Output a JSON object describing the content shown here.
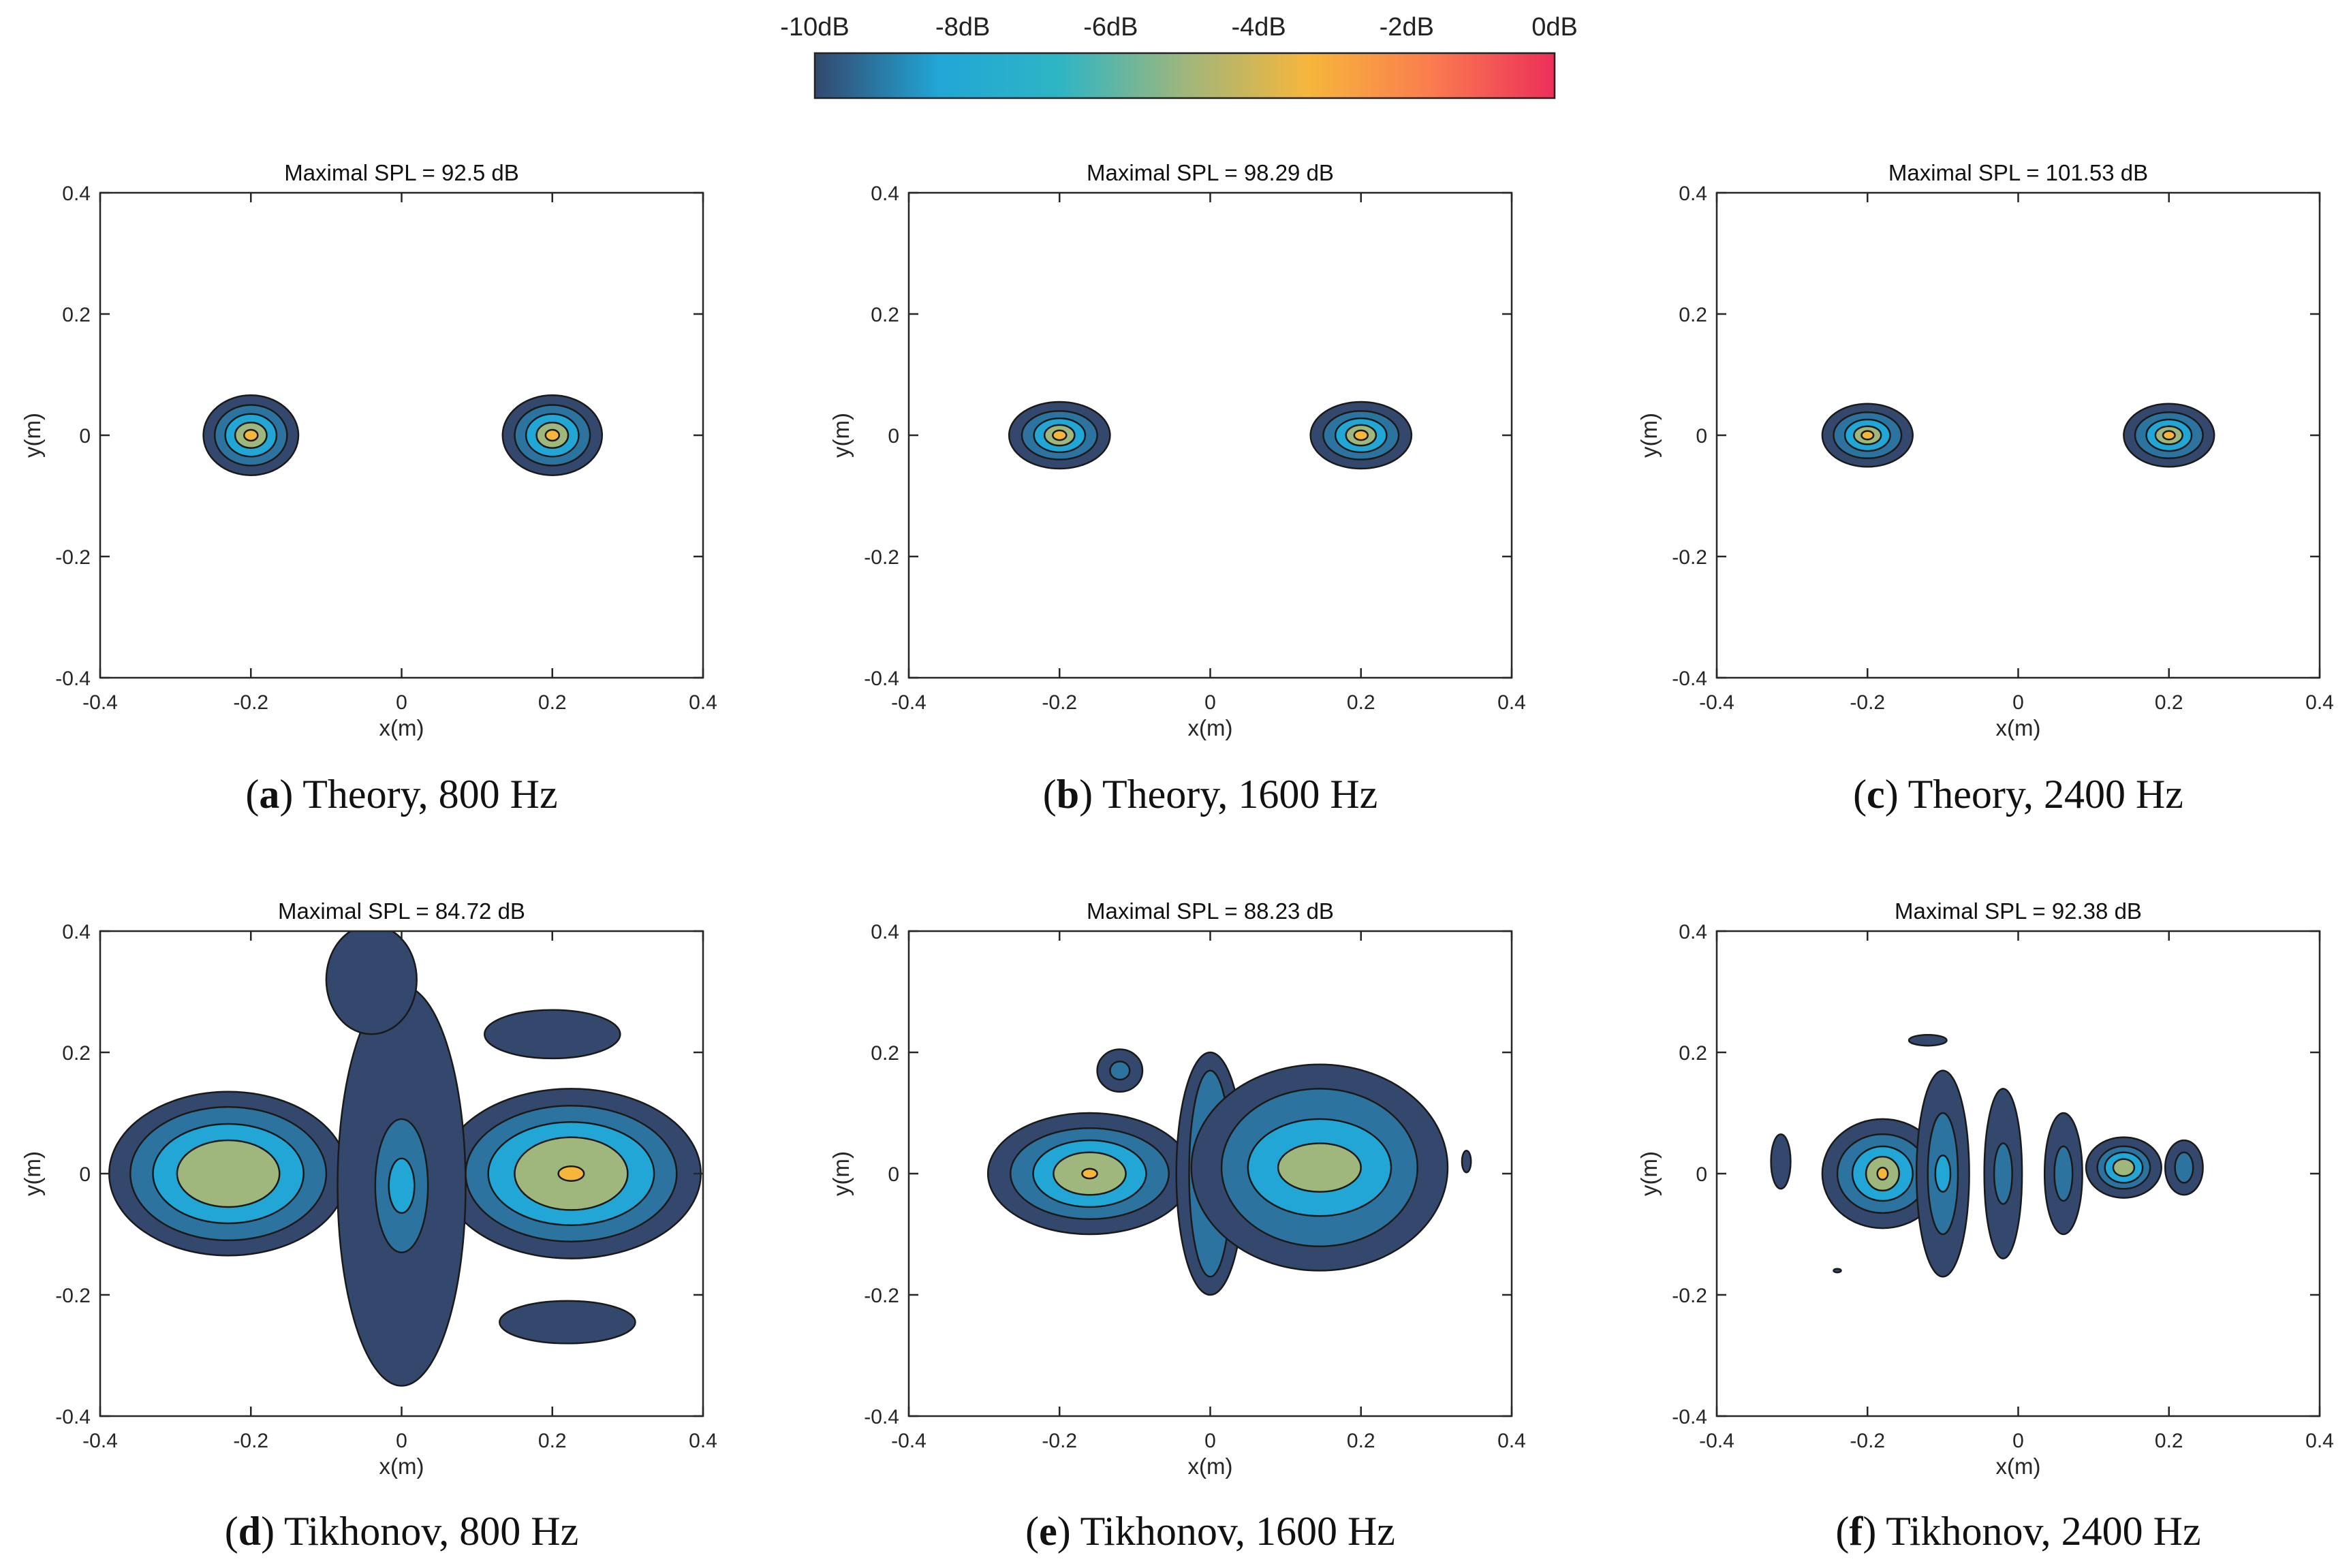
{
  "colorbar": {
    "ticks": [
      "-10dB",
      "-8dB",
      "-6dB",
      "-4dB",
      "-2dB",
      "0dB"
    ],
    "range": [
      -10,
      0
    ],
    "colors": [
      "#34486e",
      "#21a6d6",
      "#2fb5c4",
      "#9fb67c",
      "#f6b63c",
      "#fa7c4f",
      "#ec2f5a"
    ]
  },
  "chart_data": [
    {
      "type": "contour",
      "title": "Maximal SPL = 92.5 dB",
      "caption_letter": "a",
      "caption_text": "Theory, 800 Hz",
      "xlabel": "x(m)",
      "ylabel": "y(m)",
      "xlim": [
        -0.4,
        0.4
      ],
      "ylim": [
        -0.4,
        0.4
      ],
      "xticks": [
        "-0.4",
        "-0.2",
        "0",
        "0.2",
        "0.4"
      ],
      "yticks": [
        "-0.4",
        "-0.2",
        "0",
        "0.2",
        "0.4"
      ],
      "sources": [
        {
          "x": -0.2,
          "y": 0,
          "levels": [
            [
              -10,
              0.063,
              0.066
            ],
            [
              -8,
              0.048,
              0.05
            ],
            [
              -6,
              0.034,
              0.035
            ],
            [
              -4,
              0.021,
              0.021
            ],
            [
              -2,
              0.009,
              0.009
            ]
          ]
        },
        {
          "x": 0.2,
          "y": 0,
          "levels": [
            [
              -10,
              0.066,
              0.066
            ],
            [
              -8,
              0.05,
              0.05
            ],
            [
              -6,
              0.035,
              0.035
            ],
            [
              -4,
              0.021,
              0.021
            ],
            [
              -2,
              0.009,
              0.009
            ]
          ]
        }
      ]
    },
    {
      "type": "contour",
      "title": "Maximal SPL = 98.29 dB",
      "caption_letter": "b",
      "caption_text": "Theory, 1600 Hz",
      "xlabel": "x(m)",
      "ylabel": "y(m)",
      "xlim": [
        -0.4,
        0.4
      ],
      "ylim": [
        -0.4,
        0.4
      ],
      "xticks": [
        "-0.4",
        "-0.2",
        "0",
        "0.2",
        "0.4"
      ],
      "yticks": [
        "-0.4",
        "-0.2",
        "0",
        "0.2",
        "0.4"
      ],
      "sources": [
        {
          "x": -0.2,
          "y": 0,
          "levels": [
            [
              -10,
              0.067,
              0.055
            ],
            [
              -8,
              0.05,
              0.04
            ],
            [
              -6,
              0.034,
              0.028
            ],
            [
              -4,
              0.02,
              0.017
            ],
            [
              -2,
              0.009,
              0.008
            ]
          ]
        },
        {
          "x": 0.2,
          "y": 0,
          "levels": [
            [
              -10,
              0.067,
              0.055
            ],
            [
              -8,
              0.05,
              0.04
            ],
            [
              -6,
              0.034,
              0.028
            ],
            [
              -4,
              0.02,
              0.017
            ],
            [
              -2,
              0.009,
              0.008
            ]
          ]
        }
      ]
    },
    {
      "type": "contour",
      "title": "Maximal SPL = 101.53 dB",
      "caption_letter": "c",
      "caption_text": "Theory, 2400 Hz",
      "xlabel": "x(m)",
      "ylabel": "y(m)",
      "xlim": [
        -0.4,
        0.4
      ],
      "ylim": [
        -0.4,
        0.4
      ],
      "xticks": [
        "-0.4",
        "-0.2",
        "0",
        "0.2",
        "0.4"
      ],
      "yticks": [
        "-0.4",
        "-0.2",
        "0",
        "0.2",
        "0.4"
      ],
      "sources": [
        {
          "x": -0.2,
          "y": 0,
          "levels": [
            [
              -10,
              0.06,
              0.052
            ],
            [
              -8,
              0.045,
              0.038
            ],
            [
              -6,
              0.03,
              0.026
            ],
            [
              -4,
              0.018,
              0.015
            ],
            [
              -2,
              0.008,
              0.007
            ]
          ]
        },
        {
          "x": 0.2,
          "y": 0,
          "levels": [
            [
              -10,
              0.06,
              0.052
            ],
            [
              -8,
              0.045,
              0.038
            ],
            [
              -6,
              0.03,
              0.026
            ],
            [
              -4,
              0.018,
              0.015
            ],
            [
              -2,
              0.008,
              0.007
            ]
          ]
        }
      ]
    },
    {
      "type": "contour",
      "title": "Maximal SPL = 84.72 dB",
      "caption_letter": "d",
      "caption_text": "Tikhonov, 800 Hz",
      "xlabel": "x(m)",
      "ylabel": "y(m)",
      "xlim": [
        -0.4,
        0.4
      ],
      "ylim": [
        -0.4,
        0.4
      ],
      "xticks": [
        "-0.4",
        "-0.2",
        "0",
        "0.2",
        "0.4"
      ],
      "yticks": [
        "-0.4",
        "-0.2",
        "0",
        "0.2",
        "0.4"
      ],
      "sources": [
        {
          "x": -0.23,
          "y": 0,
          "levels": [
            [
              -10,
              0.158,
              0.135
            ],
            [
              -8,
              0.13,
              0.11
            ],
            [
              -6,
              0.1,
              0.082
            ],
            [
              -4,
              0.068,
              0.055
            ]
          ]
        },
        {
          "x": 0.225,
          "y": 0,
          "levels": [
            [
              -10,
              0.172,
              0.14
            ],
            [
              -8,
              0.14,
              0.112
            ],
            [
              -6,
              0.11,
              0.085
            ],
            [
              -4,
              0.075,
              0.06
            ],
            [
              -2,
              0.017,
              0.012
            ]
          ]
        },
        {
          "x": 0.0,
          "y": -0.02,
          "levels": [
            [
              -10,
              0.085,
              0.33
            ],
            [
              -8,
              0.035,
              0.11
            ],
            [
              -6,
              0.017,
              0.045
            ]
          ]
        },
        {
          "x": -0.04,
          "y": 0.32,
          "levels": [
            [
              -10,
              0.06,
              0.09
            ]
          ]
        },
        {
          "x": 0.2,
          "y": 0.23,
          "levels": [
            [
              -10,
              0.09,
              0.04
            ]
          ]
        },
        {
          "x": 0.22,
          "y": -0.245,
          "levels": [
            [
              -10,
              0.09,
              0.035
            ]
          ]
        }
      ]
    },
    {
      "type": "contour",
      "title": "Maximal SPL = 88.23 dB",
      "caption_letter": "e",
      "caption_text": "Tikhonov, 1600 Hz",
      "xlabel": "x(m)",
      "ylabel": "y(m)",
      "xlim": [
        -0.4,
        0.4
      ],
      "ylim": [
        -0.4,
        0.4
      ],
      "xticks": [
        "-0.4",
        "-0.2",
        "0",
        "0.2",
        "0.4"
      ],
      "yticks": [
        "-0.4",
        "-0.2",
        "0",
        "0.2",
        "0.4"
      ],
      "sources": [
        {
          "x": -0.16,
          "y": 0.0,
          "levels": [
            [
              -10,
              0.135,
              0.1
            ],
            [
              -8,
              0.105,
              0.075
            ],
            [
              -6,
              0.075,
              0.055
            ],
            [
              -4,
              0.048,
              0.035
            ],
            [
              -2,
              0.01,
              0.008
            ]
          ]
        },
        {
          "x": -0.12,
          "y": 0.17,
          "levels": [
            [
              -10,
              0.03,
              0.035
            ],
            [
              -8,
              0.013,
              0.015
            ]
          ]
        },
        {
          "x": 0.0,
          "y": 0.0,
          "levels": [
            [
              -10,
              0.045,
              0.2
            ],
            [
              -8,
              0.028,
              0.17
            ],
            [
              -6,
              0.012,
              0.075
            ]
          ]
        },
        {
          "x": 0.145,
          "y": 0.01,
          "levels": [
            [
              -10,
              0.17,
              0.17
            ],
            [
              -8,
              0.13,
              0.13
            ],
            [
              -6,
              0.095,
              0.08
            ],
            [
              -4,
              0.055,
              0.04
            ]
          ]
        },
        {
          "x": 0.34,
          "y": 0.02,
          "levels": [
            [
              -10,
              0.006,
              0.018
            ]
          ]
        }
      ]
    },
    {
      "type": "contour",
      "title": "Maximal SPL = 92.38 dB",
      "caption_letter": "f",
      "caption_text": "Tikhonov, 2400 Hz",
      "xlabel": "x(m)",
      "ylabel": "y(m)",
      "xlim": [
        -0.4,
        0.4
      ],
      "ylim": [
        -0.4,
        0.4
      ],
      "xticks": [
        "-0.4",
        "-0.2",
        "0",
        "0.2",
        "0.4"
      ],
      "yticks": [
        "-0.4",
        "-0.2",
        "0",
        "0.2",
        "0.4"
      ],
      "sources": [
        {
          "x": -0.18,
          "y": 0.0,
          "levels": [
            [
              -10,
              0.08,
              0.09
            ],
            [
              -8,
              0.06,
              0.065
            ],
            [
              -6,
              0.04,
              0.045
            ],
            [
              -4,
              0.022,
              0.028
            ],
            [
              -2,
              0.007,
              0.01
            ]
          ]
        },
        {
          "x": -0.1,
          "y": 0.0,
          "levels": [
            [
              -10,
              0.035,
              0.17
            ],
            [
              -8,
              0.02,
              0.1
            ],
            [
              -6,
              0.01,
              0.03
            ]
          ]
        },
        {
          "x": -0.02,
          "y": 0.0,
          "levels": [
            [
              -10,
              0.025,
              0.14
            ],
            [
              -8,
              0.012,
              0.05
            ]
          ]
        },
        {
          "x": 0.06,
          "y": 0.0,
          "levels": [
            [
              -10,
              0.025,
              0.1
            ],
            [
              -8,
              0.012,
              0.045
            ]
          ]
        },
        {
          "x": 0.14,
          "y": 0.01,
          "levels": [
            [
              -10,
              0.05,
              0.05
            ],
            [
              -8,
              0.035,
              0.035
            ],
            [
              -6,
              0.025,
              0.025
            ],
            [
              -4,
              0.014,
              0.014
            ]
          ]
        },
        {
          "x": 0.22,
          "y": 0.01,
          "levels": [
            [
              -10,
              0.025,
              0.045
            ],
            [
              -8,
              0.012,
              0.025
            ]
          ]
        },
        {
          "x": -0.315,
          "y": 0.02,
          "levels": [
            [
              -10,
              0.013,
              0.045
            ]
          ]
        },
        {
          "x": -0.12,
          "y": 0.22,
          "levels": [
            [
              -10,
              0.025,
              0.009
            ]
          ]
        },
        {
          "x": -0.24,
          "y": -0.16,
          "levels": [
            [
              -10,
              0.005,
              0.003
            ]
          ]
        }
      ]
    }
  ]
}
